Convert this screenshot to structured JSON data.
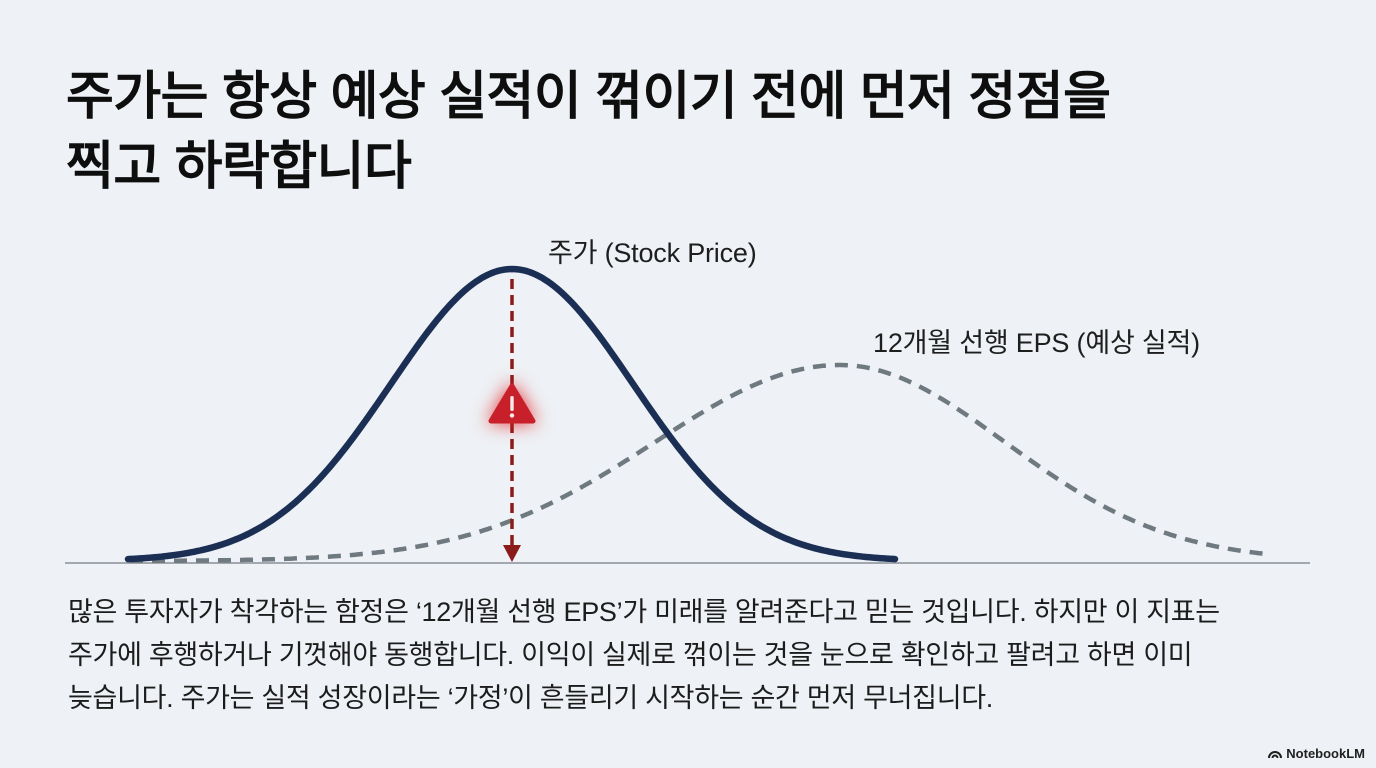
{
  "page": {
    "background": "#eef1f5"
  },
  "title": {
    "line1": "주가는 항상 예상 실적이 꺾이기 전에 먼저 정점을",
    "line2": "찍고 하락합니다"
  },
  "diagram": {
    "stock_price_label": "주가 (Stock Price)",
    "eps_label": "12개월 선행 EPS (예상 실적)",
    "warning_icon": "warning-icon",
    "colors": {
      "stock_price": "#1b2f55",
      "eps": "#6f7a80",
      "arrow": "#8b1a1a",
      "warning": "#c8202a",
      "baseline": "#8a9099"
    }
  },
  "body": {
    "lines": [
      "많은 투자자가 착각하는 함정은 ‘12개월 선행 EPS’가 미래를 알려준다고 믿는 것입니다. 하지만 이 지표는",
      "주가에 후행하거나 기껏해야 동행합니다. 이익이 실제로 꺾이는 것을 눈으로 확인하고 팔려고 하면 이미",
      "늦습니다. 주가는 실적 성장이라는 ‘가정’이 흔들리기 시작하는 순간 먼저 무너집니다."
    ]
  },
  "footer": {
    "brand": "NotebookLM",
    "logo_icon": "notebooklm-logo-icon"
  }
}
